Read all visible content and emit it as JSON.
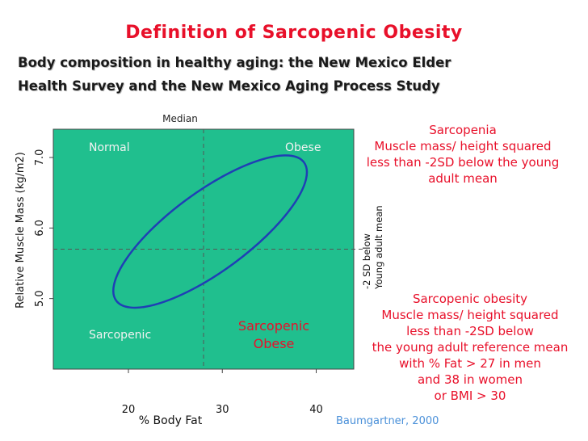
{
  "slide": {
    "title": "Definition of Sarcopenic Obesity",
    "subtitle_line1": "Body composition in healthy aging: the New Mexico Elder",
    "subtitle_line2": "Health Survey and the New Mexico Aging Process Study",
    "sarcopenia_definition": [
      "Sarcopenia",
      "Muscle mass/ height squared",
      "less than -2SD below the young",
      "adult mean"
    ],
    "sarcopenic_obesity_definition": [
      "Sarcopenic obesity",
      "Muscle mass/ height squared",
      "less than -2SD below",
      "the young adult reference mean",
      "with % Fat > 27 in men",
      "and 38 in women",
      "or BMI > 30"
    ],
    "citation": "Baumgartner, 2000"
  },
  "colors": {
    "plot_background": "#20bf8e",
    "ellipse": "#1f3fb5",
    "accent_red": "#e8102a",
    "citation_blue": "#4a90d9"
  },
  "chart_data": {
    "type": "scatter",
    "title": "",
    "xlabel": "% Body Fat",
    "ylabel": "Relative Muscle Mass (kg/m2)",
    "xlim": [
      12,
      44
    ],
    "ylim": [
      4.0,
      7.4
    ],
    "x_ticks": [
      20,
      30,
      40
    ],
    "y_ticks": [
      5.0,
      6.0,
      7.0
    ],
    "grid": false,
    "reference_lines": {
      "median_x": 28,
      "median_label": "Median",
      "threshold_y": 5.7,
      "threshold_label_line1": "-2 SD below",
      "threshold_label_line2": "Young adult mean"
    },
    "quadrant_labels": {
      "normal": "Normal",
      "obese": "Obese",
      "sarcopenic": "Sarcopenic",
      "sarcopenic_obese_line1": "Sarcopenic",
      "sarcopenic_obese_line2": "Obese"
    },
    "ellipse": {
      "center_x": 28.7,
      "center_y": 5.95,
      "semi_major_x": 10.0,
      "semi_major_y": 0.98,
      "semi_minor_x": -2.2,
      "semi_minor_y": 0.48
    }
  }
}
